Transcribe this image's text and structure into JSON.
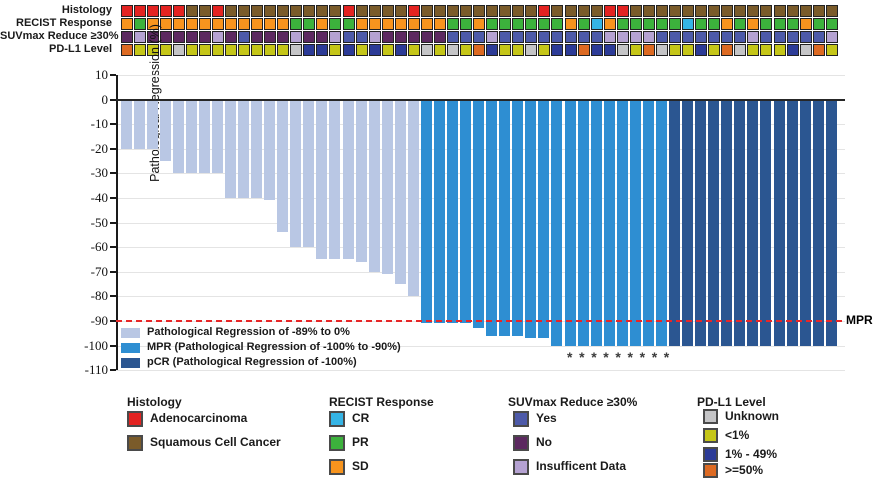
{
  "figure_title": "",
  "y_axis": {
    "title": "Pathological Regression (%)",
    "ticks": [
      10,
      0,
      -10,
      -20,
      -30,
      -40,
      -50,
      -60,
      -70,
      -80,
      -90,
      -100,
      -110
    ]
  },
  "annotations": {
    "rows": [
      {
        "key": "histology",
        "label": "Histology",
        "values": [
          "A",
          "A",
          "A",
          "A",
          "A",
          "S",
          "S",
          "A",
          "S",
          "S",
          "S",
          "S",
          "S",
          "S",
          "S",
          "S",
          "S",
          "A",
          "S",
          "S",
          "S",
          "S",
          "A",
          "S",
          "S",
          "S",
          "S",
          "S",
          "S",
          "S",
          "S",
          "S",
          "A",
          "S",
          "S",
          "S",
          "S",
          "A",
          "A",
          "S",
          "S",
          "S",
          "S",
          "S",
          "S",
          "S",
          "S",
          "S",
          "S",
          "S",
          "S",
          "S",
          "S",
          "S",
          "S"
        ]
      },
      {
        "key": "recist",
        "label": "RECIST Response",
        "values": [
          "SD",
          "PR",
          "SD",
          "SD",
          "SD",
          "SD",
          "SD",
          "SD",
          "SD",
          "SD",
          "SD",
          "SD",
          "SD",
          "PR",
          "PR",
          "SD",
          "PR",
          "PR",
          "SD",
          "SD",
          "SD",
          "SD",
          "SD",
          "SD",
          "SD",
          "PR",
          "PR",
          "SD",
          "PR",
          "PR",
          "PR",
          "PR",
          "PR",
          "PR",
          "SD",
          "PR",
          "CR",
          "SD",
          "PR",
          "PR",
          "PR",
          "PR",
          "PR",
          "CR",
          "PR",
          "PR",
          "SD",
          "PR",
          "SD",
          "PR",
          "PR",
          "PR",
          "SD",
          "PR",
          "PR"
        ]
      },
      {
        "key": "suvmax",
        "label": "SUVmax Reduce ≥30%",
        "values": [
          "N",
          "I",
          "N",
          "N",
          "N",
          "N",
          "N",
          "I",
          "N",
          "Y",
          "N",
          "N",
          "N",
          "I",
          "N",
          "N",
          "I",
          "Y",
          "Y",
          "I",
          "N",
          "N",
          "N",
          "N",
          "N",
          "Y",
          "Y",
          "Y",
          "I",
          "Y",
          "Y",
          "Y",
          "Y",
          "Y",
          "Y",
          "Y",
          "Y",
          "I",
          "I",
          "I",
          "I",
          "Y",
          "Y",
          "Y",
          "Y",
          "Y",
          "Y",
          "Y",
          "I",
          "Y",
          "Y",
          "Y",
          "Y",
          "Y",
          "I"
        ]
      },
      {
        "key": "pdl1",
        "label": "PD-L1 Level",
        "values": [
          "H",
          "L",
          "L",
          "L",
          "U",
          "L",
          "L",
          "L",
          "L",
          "L",
          "L",
          "L",
          "L",
          "U",
          "M",
          "M",
          "L",
          "M",
          "L",
          "M",
          "L",
          "M",
          "L",
          "U",
          "L",
          "U",
          "L",
          "H",
          "M",
          "L",
          "L",
          "U",
          "L",
          "M",
          "M",
          "H",
          "M",
          "M",
          "U",
          "L",
          "H",
          "U",
          "L",
          "L",
          "M",
          "L",
          "H",
          "U",
          "L",
          "L",
          "L",
          "M",
          "U",
          "H",
          "L"
        ]
      }
    ],
    "palettes": {
      "histology": {
        "A": "#e32321",
        "S": "#7a5b2a"
      },
      "recist": {
        "CR": "#35b4e5",
        "PR": "#3cb23c",
        "SD": "#f7941e"
      },
      "suvmax": {
        "Y": "#4d5aa9",
        "N": "#5c2960",
        "I": "#b5a2d2"
      },
      "pdl1": {
        "U": "#c5c5c7",
        "L": "#c5c618",
        "M": "#2c3b97",
        "H": "#dd6a22"
      }
    }
  },
  "chart_data": {
    "type": "bar",
    "title": "",
    "xlabel": "",
    "ylabel": "Pathological Regression (%)",
    "ylim": [
      -110,
      10
    ],
    "n_bars": 55,
    "values": [
      -20,
      -20,
      -20,
      -25,
      -30,
      -30,
      -30,
      -30,
      -40,
      -40,
      -40,
      -41,
      -54,
      -60,
      -60,
      -65,
      -65,
      -65,
      -66,
      -70,
      -71,
      -75,
      -80,
      -91,
      -91,
      -91,
      -91,
      -93,
      -96,
      -96,
      -96,
      -97,
      -97,
      -100,
      -100,
      -100,
      -100,
      -100,
      -100,
      -100,
      -100,
      -100,
      -100,
      -100,
      -100,
      -100,
      -100,
      -100,
      -100,
      -100,
      -100,
      -100,
      -100,
      -100,
      -100
    ],
    "group_spans": {
      "reg": [
        1,
        23
      ],
      "mpr": [
        24,
        42
      ],
      "pcr": [
        43,
        55
      ]
    },
    "bar_colors": {
      "reg": "#b9c7e4",
      "mpr": "#2e8ed2",
      "pcr": "#2b5691"
    },
    "reference_line": {
      "y": -90,
      "color": "#e82727",
      "label": "MPR"
    },
    "asterisks": {
      "count": 9,
      "note": "*"
    },
    "legend": [
      {
        "key": "reg",
        "label": "Pathological Regression of -89% to 0%"
      },
      {
        "key": "mpr",
        "label": "MPR (Pathological Regression of -100% to -90%)"
      },
      {
        "key": "pcr",
        "label": "pCR (Pathological Regression of -100%)"
      }
    ]
  },
  "bottom_legend": {
    "groups": [
      {
        "title": "Histology",
        "items": [
          {
            "label": "Adenocarcinoma",
            "color": "#e32321"
          },
          {
            "label": "Squamous Cell Cancer",
            "color": "#7a5b2a"
          }
        ]
      },
      {
        "title": "RECIST Response",
        "items": [
          {
            "label": "CR",
            "color": "#35b4e5"
          },
          {
            "label": "PR",
            "color": "#3cb23c"
          },
          {
            "label": "SD",
            "color": "#f7941e"
          }
        ]
      },
      {
        "title": "SUVmax Reduce ≥30%",
        "items": [
          {
            "label": "Yes",
            "color": "#4d5aa9"
          },
          {
            "label": "No",
            "color": "#5c2960"
          },
          {
            "label": "Insufficent Data",
            "color": "#b5a2d2"
          }
        ]
      },
      {
        "title": "PD-L1 Level",
        "items": [
          {
            "label": "Unknown",
            "color": "#c5c5c7"
          },
          {
            "label": "<1%",
            "color": "#c5c618"
          },
          {
            "label": "1% - 49%",
            "color": "#2c3b97"
          },
          {
            "label": ">=50%",
            "color": "#dd6a22"
          }
        ]
      }
    ]
  }
}
